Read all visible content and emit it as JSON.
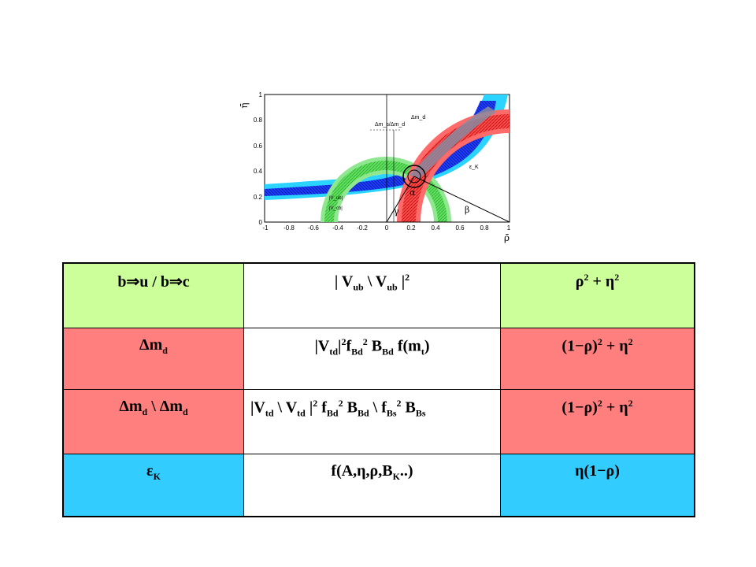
{
  "colors": {
    "green": "#ccff99",
    "red": "#ff7f7f",
    "blue": "#33ccff"
  },
  "plot": {
    "y_axis_label": "η̄",
    "x_axis_label": "ρ̄",
    "y_ticks": [
      "1",
      "0.8",
      "0.6",
      "0.4",
      "0.2",
      "0"
    ],
    "x_ticks": [
      "-1",
      "-0.8",
      "-0.6",
      "-0.4",
      "-0.2",
      "0",
      "0.2",
      "0.4",
      "0.6",
      "0.8",
      "1"
    ],
    "label_dms_dmd": "Δm_s/Δm_d",
    "label_dmd": "Δm_d",
    "label_epsk": "ε_K",
    "label_vub_top": "|V_ub|",
    "label_vub_bottom": "|V_cb|",
    "label_alpha": "α",
    "label_gamma": "γ",
    "label_beta": "β"
  },
  "table": {
    "rows": [
      {
        "color": "green",
        "process": "b⇒u / b⇒c",
        "formula": [
          {
            "t": "| V"
          },
          {
            "sub": "ub"
          },
          {
            "t": " \\ V"
          },
          {
            "sub": "ub"
          },
          {
            "t": " |"
          },
          {
            "sup": "2"
          }
        ],
        "constraint": [
          {
            "t": "ρ"
          },
          {
            "sup": "2"
          },
          {
            "t": " + η"
          },
          {
            "sup": "2"
          }
        ]
      },
      {
        "color": "red",
        "process": [
          {
            "t": "Δm"
          },
          {
            "sub": "d"
          }
        ],
        "formula": [
          {
            "t": "|V"
          },
          {
            "sub": "td"
          },
          {
            "t": "|"
          },
          {
            "sup": "2"
          },
          {
            "t": "f"
          },
          {
            "sub": "Bd"
          },
          {
            "sup": "2"
          },
          {
            "t": " B"
          },
          {
            "sub": "Bd"
          },
          {
            "t": " f(m"
          },
          {
            "sub": "t"
          },
          {
            "t": ")"
          }
        ],
        "constraint": [
          {
            "t": "(1−ρ)"
          },
          {
            "sup": "2"
          },
          {
            "t": " + η"
          },
          {
            "sup": "2"
          }
        ]
      },
      {
        "color": "red",
        "process": [
          {
            "t": "Δm"
          },
          {
            "sub": "d"
          },
          {
            "t": " \\ Δm"
          },
          {
            "sub": "d"
          }
        ],
        "formula": [
          {
            "t": "|V"
          },
          {
            "sub": "td"
          },
          {
            "t": " \\ V"
          },
          {
            "sub": "td"
          },
          {
            "t": " |"
          },
          {
            "sup": "2"
          },
          {
            "t": "  f"
          },
          {
            "sub": "Bd"
          },
          {
            "sup": "2"
          },
          {
            "t": " B"
          },
          {
            "sub": "Bd"
          },
          {
            "t": " \\ f"
          },
          {
            "sub": "Bs"
          },
          {
            "sup": "2"
          },
          {
            "t": " B"
          },
          {
            "sub": "Bs"
          }
        ],
        "constraint": [
          {
            "t": "(1−ρ)"
          },
          {
            "sup": "2"
          },
          {
            "t": " + η"
          },
          {
            "sup": "2"
          }
        ]
      },
      {
        "color": "blue",
        "process": [
          {
            "t": "ε"
          },
          {
            "sub": "K"
          }
        ],
        "formula": [
          {
            "t": "f(A,η,ρ,B"
          },
          {
            "sub": "K"
          },
          {
            "t": "..)"
          }
        ],
        "constraint": [
          {
            "t": "η(1−ρ)"
          }
        ]
      }
    ]
  }
}
